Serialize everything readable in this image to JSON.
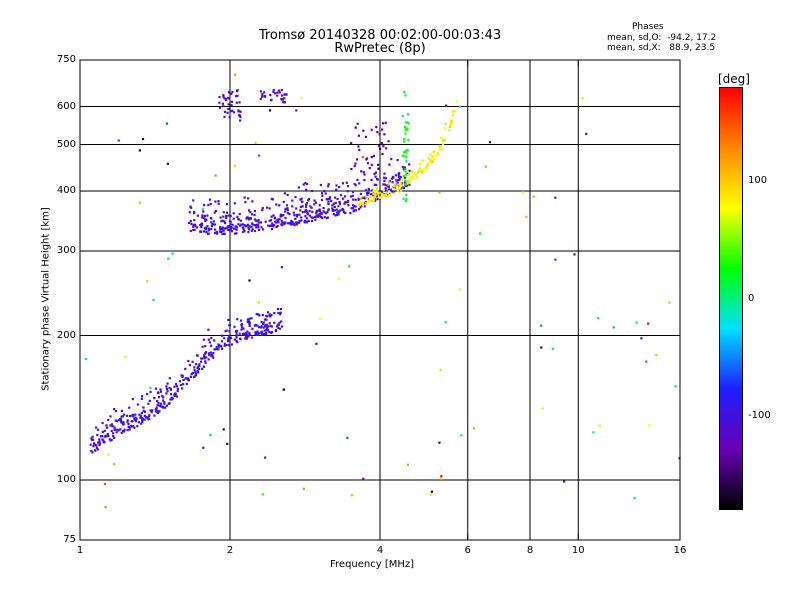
{
  "header": {
    "title_line1": "Tromsø 20140328 00:02:00-00:03:43",
    "title_line2": "RwPretec (8p)",
    "phases_label": "Phases",
    "stats_o": "mean, sd,O:  -94.2, 17.2",
    "stats_x": "mean, sd,X:   88.9, 23.5"
  },
  "colorbar": {
    "unit_label": "[deg]",
    "tick_labels": [
      "100",
      "0",
      "-100"
    ],
    "tick_values": [
      100,
      0,
      -100
    ],
    "range": [
      -180,
      180
    ],
    "colors": [
      "#000000",
      "#6a00b8",
      "#1e1eff",
      "#00e0ff",
      "#00ff00",
      "#ffff00",
      "#ff8800",
      "#ff0000"
    ]
  },
  "chart_data": {
    "type": "scatter",
    "title": "Tromsø 20140328 00:02:00-00:03:43",
    "subtitle": "RwPretec (8p)",
    "xlabel": "Frequency [MHz]",
    "ylabel": "Stationary phase Virtual Height [km]",
    "xscale": "log",
    "yscale": "log",
    "xlim": [
      1,
      16
    ],
    "ylim": [
      75,
      750
    ],
    "x_ticks": [
      1,
      2,
      4,
      6,
      8,
      10,
      16
    ],
    "x_tick_labels": [
      "1",
      "2",
      "4",
      "6",
      "8",
      "10",
      "16"
    ],
    "y_ticks": [
      75,
      100,
      200,
      300,
      400,
      500,
      600,
      750
    ],
    "y_tick_labels": [
      "75",
      "100",
      "200",
      "300",
      "400",
      "500",
      "600",
      "750"
    ],
    "grid_x": [
      2,
      4,
      6,
      8,
      10
    ],
    "grid_y": [
      100,
      200,
      300,
      400,
      500,
      600
    ],
    "color_variable": "phase [deg]",
    "traces": [
      {
        "kind": "curve",
        "x": [
          1.65,
          1.85,
          2.0,
          2.3,
          2.7,
          3.1,
          3.5,
          3.9,
          4.2,
          4.6
        ],
        "y_center": [
          330,
          325,
          325,
          330,
          340,
          350,
          360,
          380,
          395,
          410
        ],
        "y_spread": 0.22,
        "phase": -105,
        "count": 520
      },
      {
        "kind": "curve",
        "x": [
          3.6,
          4.0,
          4.4,
          4.8,
          5.2,
          5.5,
          5.7
        ],
        "y_center": [
          370,
          385,
          400,
          430,
          470,
          530,
          600
        ],
        "y_spread": 0.1,
        "phase": 85,
        "count": 140
      },
      {
        "kind": "curve",
        "x": [
          1.05,
          1.2,
          1.35,
          1.5,
          1.65,
          1.8,
          1.95,
          2.1,
          2.3,
          2.55
        ],
        "y_center": [
          113,
          124,
          132,
          142,
          158,
          175,
          188,
          195,
          200,
          205
        ],
        "y_spread": 0.18,
        "phase": -100,
        "count": 430
      },
      {
        "kind": "cluster",
        "x_range": [
          1.9,
          2.1
        ],
        "y_range": [
          560,
          650
        ],
        "phase": -110,
        "count": 40
      },
      {
        "kind": "cluster",
        "x_range": [
          2.3,
          2.6
        ],
        "y_range": [
          610,
          650
        ],
        "phase": -110,
        "count": 30
      },
      {
        "kind": "cluster",
        "x_range": [
          3.5,
          4.2
        ],
        "y_range": [
          430,
          560
        ],
        "phase": -130,
        "count": 40
      },
      {
        "kind": "column",
        "x": 4.5,
        "y_range": [
          380,
          650
        ],
        "phase": 20,
        "count": 35
      },
      {
        "kind": "scatter",
        "x_range": [
          1.0,
          16
        ],
        "y_range": [
          78,
          700
        ],
        "phase": "mixed",
        "count": 90
      }
    ]
  }
}
